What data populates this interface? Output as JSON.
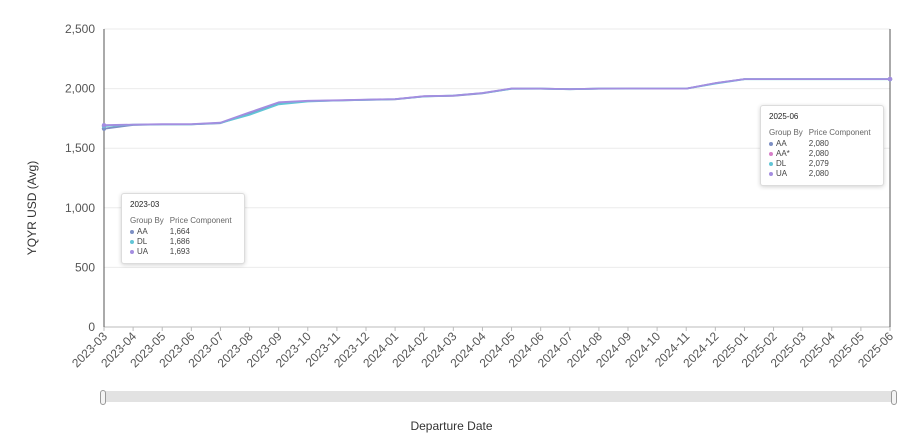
{
  "chart_data": {
    "type": "line",
    "xlabel": "Departure Date",
    "ylabel": "YQYR USD (Avg)",
    "ylim": [
      0,
      2500
    ],
    "yticks": [
      0,
      500,
      1000,
      1500,
      2000,
      2500
    ],
    "ytick_labels": [
      "0",
      "500",
      "1,000",
      "1,500",
      "2,000",
      "2,500"
    ],
    "categories": [
      "2023-03",
      "2023-04",
      "2023-05",
      "2023-06",
      "2023-07",
      "2023-08",
      "2023-09",
      "2023-10",
      "2023-11",
      "2023-12",
      "2024-01",
      "2024-02",
      "2024-03",
      "2024-04",
      "2024-05",
      "2024-06",
      "2024-07",
      "2024-08",
      "2024-09",
      "2024-10",
      "2024-11",
      "2024-12",
      "2025-01",
      "2025-02",
      "2025-03",
      "2025-04",
      "2025-05",
      "2025-06"
    ],
    "grid": true,
    "series": [
      {
        "name": "AA",
        "color": "#7d8fc4",
        "values": [
          1664,
          1695,
          1700,
          1700,
          1710,
          1790,
          1880,
          1895,
          1900,
          1905,
          1910,
          1935,
          1940,
          1960,
          2000,
          2000,
          1995,
          2000,
          2000,
          2000,
          2000,
          2045,
          2080,
          2080,
          2080,
          2080,
          2080,
          2080
        ]
      },
      {
        "name": "AA*",
        "color": "#d77fc9",
        "values": [
          null,
          null,
          null,
          null,
          null,
          null,
          null,
          null,
          null,
          null,
          null,
          null,
          null,
          null,
          null,
          null,
          null,
          null,
          null,
          null,
          null,
          null,
          null,
          null,
          null,
          null,
          null,
          2080
        ]
      },
      {
        "name": "DL",
        "color": "#62c5d6",
        "values": [
          1686,
          1697,
          1700,
          1700,
          1712,
          1780,
          1868,
          1892,
          1900,
          1906,
          1912,
          1934,
          1942,
          1962,
          1998,
          1999,
          1995,
          1999,
          2000,
          2000,
          2000,
          2042,
          2079,
          2079,
          2079,
          2079,
          2079,
          2079
        ]
      },
      {
        "name": "UA",
        "color": "#a48de0",
        "values": [
          1693,
          1698,
          1701,
          1702,
          1714,
          1800,
          1885,
          1898,
          1902,
          1908,
          1912,
          1936,
          1941,
          1963,
          2001,
          2000,
          1996,
          2000,
          2001,
          2000,
          2000,
          2046,
          2080,
          2080,
          2080,
          2080,
          2080,
          2080
        ]
      }
    ],
    "tooltips": [
      {
        "id": "left",
        "title": "2023-03",
        "header": [
          "Group By",
          "Price Component"
        ],
        "rows": [
          {
            "label": "AA",
            "value": "1,664",
            "color": "#7d8fc4"
          },
          {
            "label": "DL",
            "value": "1,686",
            "color": "#62c5d6"
          },
          {
            "label": "UA",
            "value": "1,693",
            "color": "#a48de0"
          }
        ]
      },
      {
        "id": "right",
        "title": "2025-06",
        "header": [
          "Group By",
          "Price Component"
        ],
        "rows": [
          {
            "label": "AA",
            "value": "2,080",
            "color": "#7d8fc4"
          },
          {
            "label": "AA*",
            "value": "2,080",
            "color": "#d77fc9"
          },
          {
            "label": "DL",
            "value": "2,079",
            "color": "#62c5d6"
          },
          {
            "label": "UA",
            "value": "2,080",
            "color": "#a48de0"
          }
        ]
      }
    ]
  }
}
